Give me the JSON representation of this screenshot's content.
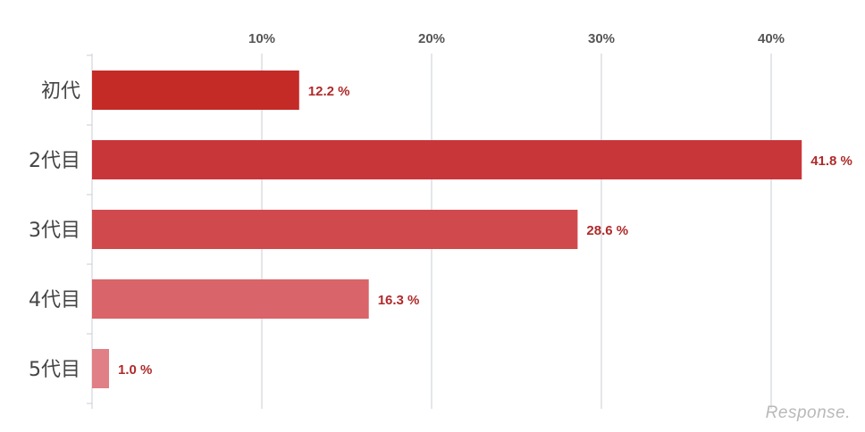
{
  "chart_data": {
    "type": "bar",
    "orientation": "horizontal",
    "categories": [
      "初代",
      "2代目",
      "3代目",
      "4代目",
      "5代目"
    ],
    "values": [
      12.2,
      41.8,
      28.6,
      16.3,
      1.0
    ],
    "value_labels": [
      "12.2 %",
      "41.8 %",
      "28.6 %",
      "16.3 %",
      "1.0 %"
    ],
    "xticks": [
      "10%",
      "20%",
      "30%",
      "40%"
    ],
    "xtick_values": [
      10,
      20,
      30,
      40
    ],
    "xlim": [
      0,
      45
    ],
    "grid": true,
    "colors": [
      "#c42b27",
      "#c9363a",
      "#d04a4d",
      "#d9646a",
      "#e07f86"
    ],
    "value_label_color": "#b02a2a"
  },
  "watermark": "Response."
}
